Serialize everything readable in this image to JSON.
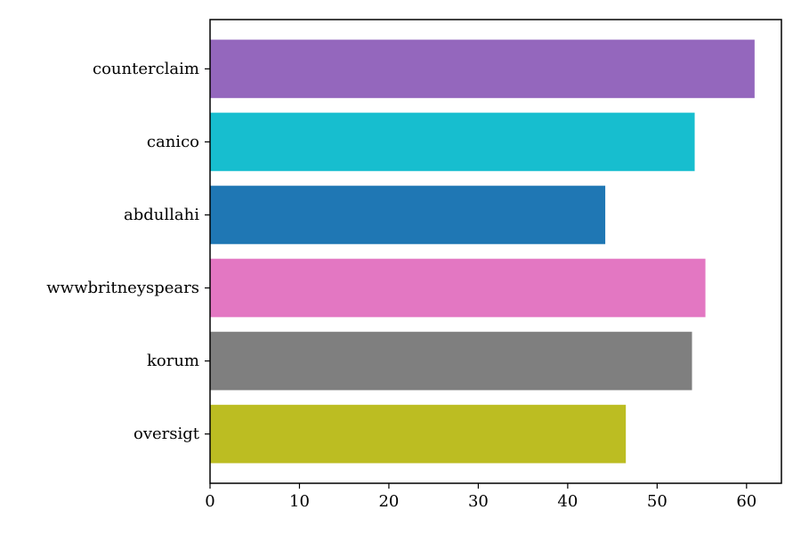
{
  "chart_data": {
    "type": "bar",
    "orientation": "horizontal",
    "title": "",
    "xlabel": "",
    "ylabel": "",
    "categories": [
      "counterclaim",
      "canico",
      "abdullahi",
      "wwwbritneyspears",
      "korum",
      "oversigt"
    ],
    "values": [
      60.9,
      54.2,
      44.2,
      55.4,
      53.9,
      46.5
    ],
    "colors": [
      "#9467bd",
      "#17becf",
      "#1f77b4",
      "#e377c2",
      "#7f7f7f",
      "#bcbd22"
    ],
    "xlim": [
      0,
      63.9
    ],
    "xticks": [
      0,
      10,
      20,
      30,
      40,
      50,
      60
    ],
    "grid": false,
    "legend": "none"
  }
}
